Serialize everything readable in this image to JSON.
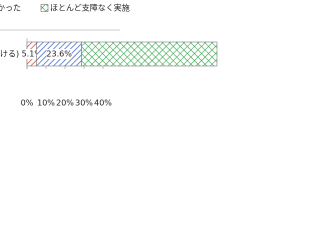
{
  "chart_data": {
    "type": "stacked-bar-horizontal",
    "categories": [
      "ける)"
    ],
    "series": [
      {
        "color": "#e05050",
        "pattern": "hatch",
        "values": [
          5.1
        ],
        "value_labels": [
          "5.1%"
        ]
      },
      {
        "name": "かった",
        "color": "#4a6fd0",
        "pattern": "hatch",
        "values": [
          23.6
        ],
        "value_labels": [
          "23.6%"
        ]
      },
      {
        "name": "ほとんど支障なく実施",
        "color": "#3aa850",
        "pattern": "cross",
        "values": [
          71.3
        ]
      }
    ],
    "xlim": [
      0,
      100
    ],
    "xticks": [
      {
        "value": 0,
        "label": "0%"
      },
      {
        "value": 10,
        "label": "10%"
      },
      {
        "value": 20,
        "label": "20%"
      },
      {
        "value": 30,
        "label": "30%"
      },
      {
        "value": 40,
        "label": "40%"
      }
    ]
  }
}
